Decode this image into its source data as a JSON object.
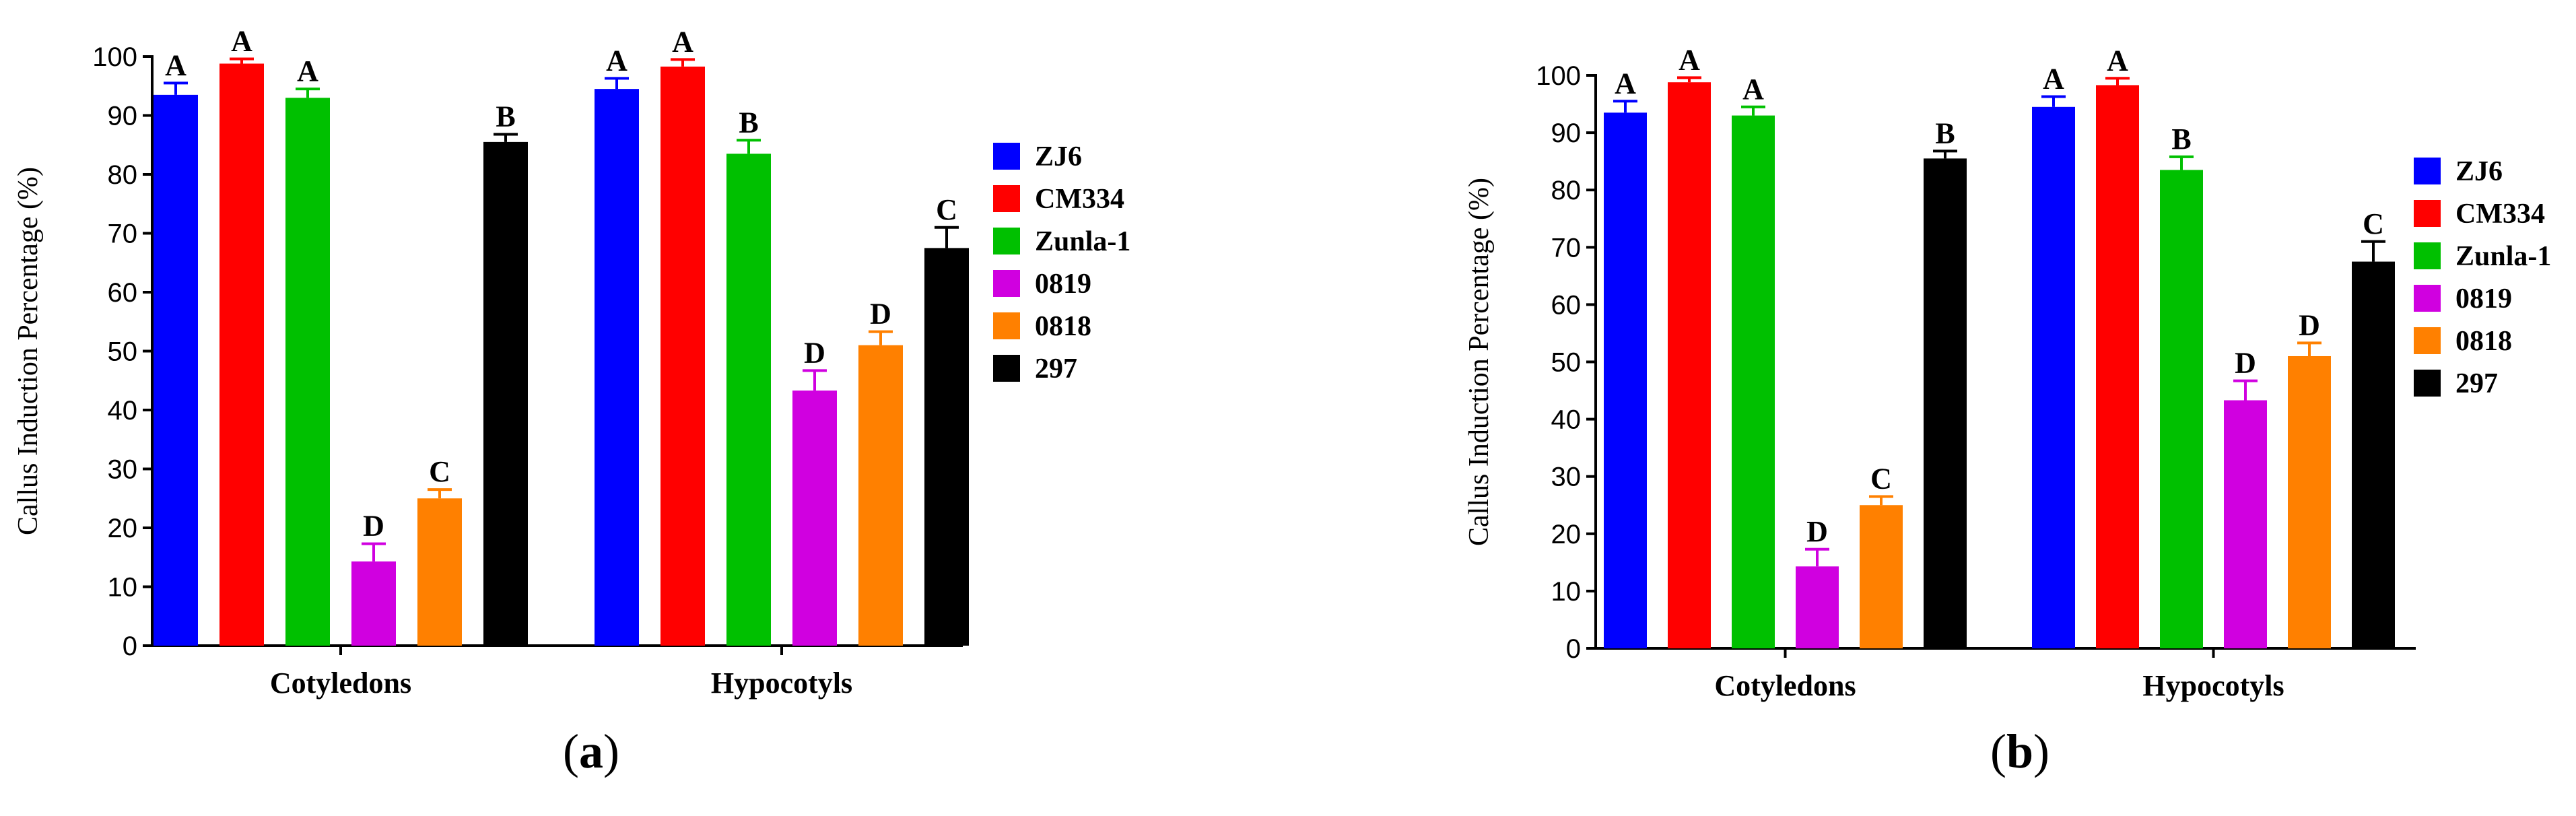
{
  "figure": {
    "series_colors": {
      "ZJ6": "#0000ff",
      "CM334": "#ff0000",
      "Zunla-1": "#00c000",
      "0819": "#d000e0",
      "0818": "#ff8000",
      "297": "#000000"
    }
  },
  "chart_data": [
    {
      "type": "bar",
      "panel_label": "a",
      "title": "",
      "xlabel": "",
      "ylabel": "Callus Induction  Percentage (%)",
      "ylim": [
        0,
        100
      ],
      "yticks": [
        0,
        10,
        20,
        30,
        40,
        50,
        60,
        70,
        80,
        90,
        100
      ],
      "categories": [
        "Cotyledons",
        "Hypocotyls"
      ],
      "legend_position": "right",
      "series": [
        {
          "name": "ZJ6",
          "color": "#0000ff",
          "values": [
            93.5,
            94.5
          ],
          "errors": [
            2.0,
            1.8
          ],
          "letters": [
            "A",
            "A"
          ]
        },
        {
          "name": "CM334",
          "color": "#ff0000",
          "values": [
            98.8,
            98.3
          ],
          "errors": [
            0.8,
            1.2
          ],
          "letters": [
            "A",
            "A"
          ]
        },
        {
          "name": "Zunla-1",
          "color": "#00c000",
          "values": [
            93.0,
            83.5
          ],
          "errors": [
            1.5,
            2.3
          ],
          "letters": [
            "A",
            "B"
          ]
        },
        {
          "name": "0819",
          "color": "#d000e0",
          "values": [
            14.3,
            43.3
          ],
          "errors": [
            3.0,
            3.4
          ],
          "letters": [
            "D",
            "D"
          ]
        },
        {
          "name": "0818",
          "color": "#ff8000",
          "values": [
            25.0,
            51.0
          ],
          "errors": [
            1.5,
            2.3
          ],
          "letters": [
            "C",
            "D"
          ]
        },
        {
          "name": "297",
          "color": "#000000",
          "values": [
            85.5,
            67.5
          ],
          "errors": [
            1.3,
            3.5
          ],
          "letters": [
            "B",
            "C"
          ]
        }
      ]
    },
    {
      "type": "bar",
      "panel_label": "b",
      "title": "",
      "xlabel": "",
      "ylabel": "Callus Induction  Percentage (%)",
      "ylim": [
        0,
        100
      ],
      "yticks": [
        0,
        10,
        20,
        30,
        40,
        50,
        60,
        70,
        80,
        90,
        100
      ],
      "categories": [
        "Cotyledons",
        "Hypocotyls"
      ],
      "legend_position": "right",
      "series": [
        {
          "name": "ZJ6",
          "color": "#0000ff",
          "values": [
            93.5,
            94.5
          ],
          "errors": [
            2.0,
            1.8
          ],
          "letters": [
            "A",
            "A"
          ]
        },
        {
          "name": "CM334",
          "color": "#ff0000",
          "values": [
            98.8,
            98.3
          ],
          "errors": [
            0.8,
            1.2
          ],
          "letters": [
            "A",
            "A"
          ]
        },
        {
          "name": "Zunla-1",
          "color": "#00c000",
          "values": [
            93.0,
            83.5
          ],
          "errors": [
            1.5,
            2.3
          ],
          "letters": [
            "A",
            "B"
          ]
        },
        {
          "name": "0819",
          "color": "#d000e0",
          "values": [
            14.3,
            43.3
          ],
          "errors": [
            3.0,
            3.4
          ],
          "letters": [
            "D",
            "D"
          ]
        },
        {
          "name": "0818",
          "color": "#ff8000",
          "values": [
            25.0,
            51.0
          ],
          "errors": [
            1.5,
            2.3
          ],
          "letters": [
            "C",
            "D"
          ]
        },
        {
          "name": "297",
          "color": "#000000",
          "values": [
            85.5,
            67.5
          ],
          "errors": [
            1.3,
            3.5
          ],
          "letters": [
            "B",
            "C"
          ]
        }
      ]
    }
  ]
}
